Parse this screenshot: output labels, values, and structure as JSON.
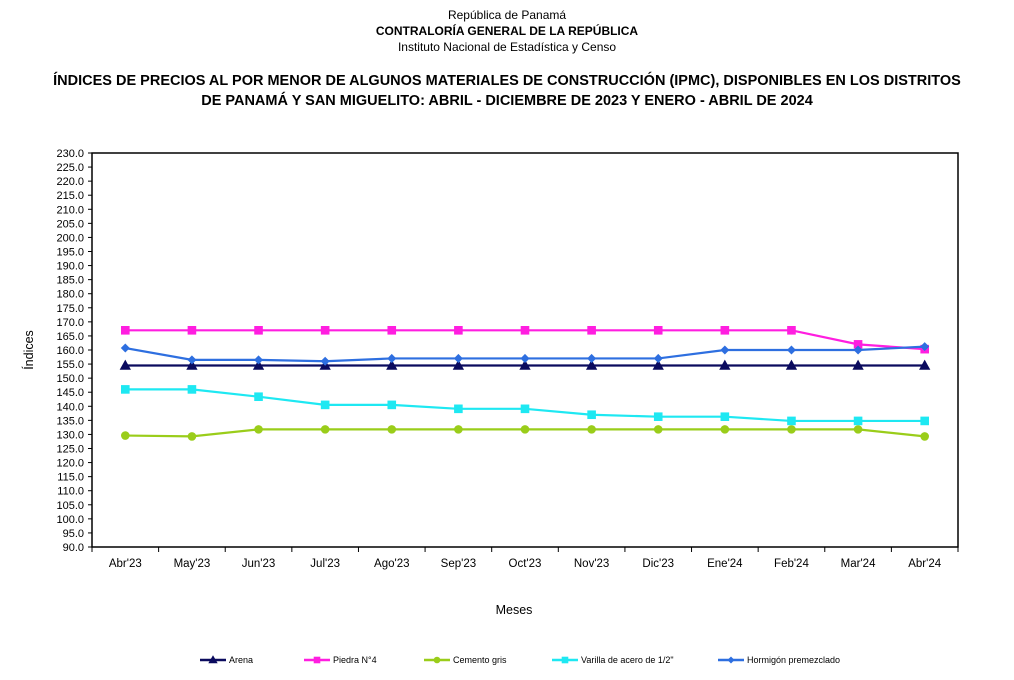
{
  "header": {
    "line1": "República de Panamá",
    "line2": "CONTRALORÍA GENERAL DE LA REPÚBLICA",
    "line3": "Instituto Nacional de Estadística y Censo"
  },
  "chart_data": {
    "type": "line",
    "title_line1": "ÍNDICES DE PRECIOS AL POR MENOR DE ALGUNOS MATERIALES DE CONSTRUCCIÓN  (IPMC), DISPONIBLES EN LOS DISTRITOS",
    "title_line2": "DE PANAMÁ Y SAN MIGUELITO: ABRIL - DICIEMBRE DE 2023 Y ENERO - ABRIL DE 2024",
    "xlabel": "Meses",
    "ylabel": "Índices",
    "ylim": [
      90,
      230
    ],
    "ytick_step": 5,
    "grid": false,
    "legend_position": "bottom",
    "categories": [
      "Abr'23",
      "May'23",
      "Jun'23",
      "Jul'23",
      "Ago'23",
      "Sep'23",
      "Oct'23",
      "Nov'23",
      "Dic'23",
      "Ene'24",
      "Feb'24",
      "Mar'24",
      "Abr'24"
    ],
    "series": [
      {
        "name": "Arena",
        "color": "#0b0b5e",
        "marker": "triangle",
        "values": [
          154.5,
          154.5,
          154.5,
          154.5,
          154.5,
          154.5,
          154.5,
          154.5,
          154.5,
          154.5,
          154.5,
          154.5,
          154.5
        ]
      },
      {
        "name": "Piedra N°4",
        "color": "#ff1ee0",
        "marker": "square",
        "values": [
          167.0,
          167.0,
          167.0,
          167.0,
          167.0,
          167.0,
          167.0,
          167.0,
          167.0,
          167.0,
          167.0,
          162.0,
          160.3
        ]
      },
      {
        "name": "Cemento gris",
        "color": "#9acd1a",
        "marker": "circle",
        "values": [
          129.6,
          129.3,
          131.8,
          131.8,
          131.8,
          131.8,
          131.8,
          131.8,
          131.8,
          131.8,
          131.8,
          131.8,
          129.3
        ]
      },
      {
        "name": "Varilla de acero de 1/2\"",
        "color": "#1ee8f2",
        "marker": "square",
        "values": [
          146.0,
          146.0,
          143.4,
          140.5,
          140.5,
          139.1,
          139.1,
          137.0,
          136.3,
          136.3,
          134.8,
          134.8,
          134.8
        ]
      },
      {
        "name": "Hormigón premezclado",
        "color": "#2e6fe0",
        "marker": "diamond",
        "values": [
          160.7,
          156.5,
          156.5,
          156.0,
          157.0,
          157.0,
          157.0,
          157.0,
          157.0,
          160.0,
          160.0,
          160.0,
          161.2
        ]
      }
    ]
  }
}
